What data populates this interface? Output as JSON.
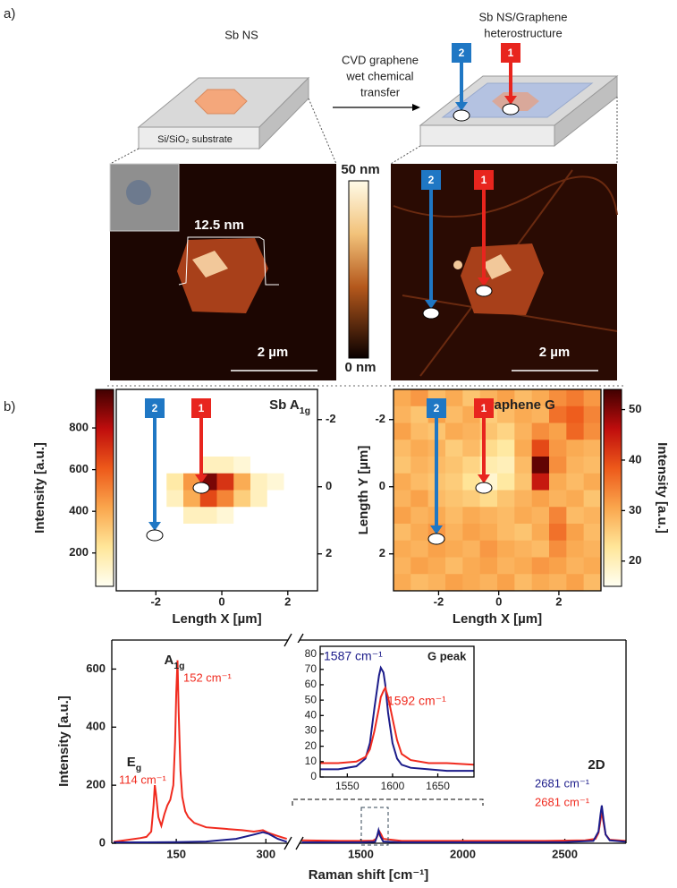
{
  "panel_labels": [
    "a)",
    "b)"
  ],
  "schematic": {
    "left_title": "Sb NS",
    "right_title": [
      "Sb NS/Graphene",
      "heterostructure"
    ],
    "substrate": "Si/SiO₂ substrate",
    "transfer": [
      "CVD graphene",
      "wet chemical",
      "transfer"
    ],
    "marker_1": "1",
    "marker_2": "2"
  },
  "afm": {
    "height": "12.5 nm",
    "scale_bar": "2 µm",
    "cbar_top": "50 nm",
    "cbar_bottom": "0 nm"
  },
  "chart_data": [
    {
      "type": "heatmap",
      "title": "Sb A",
      "title_sub": "1g",
      "xlabel": "Length X [µm]",
      "clabel": "Intensity [a.u.]",
      "xlim": [
        -3.2,
        2.9
      ],
      "xticks": [
        -2,
        0,
        2
      ],
      "ylim": [
        -2.9,
        3.1
      ],
      "yticks": [
        -2,
        0,
        2
      ],
      "yaxis_side": "right",
      "colorbar_side": "left",
      "clim": [
        40,
        985
      ],
      "cticks": [
        200,
        400,
        600,
        800
      ],
      "values": [
        [
          0,
          0,
          0,
          0,
          0,
          0,
          0,
          0,
          0,
          0,
          0,
          0
        ],
        [
          0,
          0,
          0,
          0,
          0,
          0,
          0,
          0,
          0,
          0,
          0,
          0
        ],
        [
          0,
          0,
          0,
          0,
          0,
          0,
          0,
          0,
          0,
          0,
          0,
          0
        ],
        [
          0,
          0,
          0,
          0,
          0,
          0,
          0,
          0,
          0,
          0,
          0,
          0
        ],
        [
          0,
          0,
          0,
          0,
          0,
          150,
          150,
          100,
          0,
          0,
          0,
          0
        ],
        [
          0,
          0,
          0,
          200,
          450,
          900,
          700,
          400,
          150,
          100,
          0,
          0
        ],
        [
          0,
          0,
          0,
          150,
          400,
          650,
          500,
          300,
          150,
          0,
          0,
          0
        ],
        [
          0,
          0,
          0,
          0,
          150,
          150,
          100,
          0,
          0,
          0,
          0,
          0
        ],
        [
          0,
          0,
          0,
          0,
          0,
          0,
          0,
          0,
          0,
          0,
          0,
          0
        ],
        [
          0,
          0,
          0,
          0,
          0,
          0,
          0,
          0,
          0,
          0,
          0,
          0
        ],
        [
          0,
          0,
          0,
          0,
          0,
          0,
          0,
          0,
          0,
          0,
          0,
          0
        ],
        [
          0,
          0,
          0,
          0,
          0,
          0,
          0,
          0,
          0,
          0,
          0,
          0
        ]
      ]
    },
    {
      "type": "heatmap",
      "title": "Graphene G",
      "xlabel": "Length X [µm]",
      "ylabel": "Length Y [µm]",
      "clabel": "Intensity [a.u.]",
      "xlim": [
        -3.5,
        3.4
      ],
      "xticks": [
        -2,
        0,
        2
      ],
      "ylim": [
        -2.9,
        3.1
      ],
      "yticks": [
        -2,
        0,
        2
      ],
      "yaxis_side": "left",
      "colorbar_side": "right",
      "clim": [
        15,
        54
      ],
      "cticks": [
        20,
        30,
        40,
        50
      ],
      "values": [
        [
          30,
          32,
          28,
          30,
          27,
          29,
          31,
          28,
          30,
          33,
          35,
          32
        ],
        [
          29,
          27,
          31,
          28,
          30,
          26,
          28,
          30,
          29,
          36,
          38,
          34
        ],
        [
          31,
          28,
          27,
          30,
          29,
          27,
          25,
          29,
          33,
          31,
          37,
          33
        ],
        [
          28,
          30,
          29,
          26,
          28,
          24,
          22,
          30,
          40,
          32,
          30,
          29
        ],
        [
          27,
          29,
          28,
          27,
          25,
          21,
          20,
          28,
          52,
          33,
          29,
          28
        ],
        [
          30,
          28,
          27,
          26,
          23,
          18,
          22,
          27,
          45,
          30,
          28,
          30
        ],
        [
          29,
          31,
          28,
          27,
          26,
          24,
          27,
          29,
          31,
          29,
          30,
          27
        ],
        [
          31,
          29,
          30,
          28,
          30,
          29,
          28,
          30,
          29,
          34,
          28,
          29
        ],
        [
          28,
          30,
          32,
          29,
          31,
          30,
          28,
          27,
          30,
          36,
          31,
          28
        ],
        [
          30,
          29,
          31,
          30,
          29,
          32,
          30,
          29,
          28,
          33,
          30,
          29
        ],
        [
          29,
          31,
          30,
          28,
          30,
          31,
          29,
          30,
          32,
          31,
          29,
          30
        ],
        [
          30,
          28,
          29,
          31,
          30,
          29,
          31,
          28,
          30,
          29,
          31,
          28
        ]
      ]
    },
    {
      "type": "line",
      "xlabel": "Raman shift [cm⁻¹]",
      "ylabel": "Intensity [a.u.]",
      "ylim": [
        0,
        700
      ],
      "yticks": [
        0,
        200,
        400,
        600
      ],
      "segments": [
        {
          "xlim": [
            42,
            337
          ],
          "xticks": [
            150,
            300
          ],
          "series": [
            {
              "color": "#f02a1e",
              "x": [
                45,
                70,
                90,
                100,
                108,
                112,
                114,
                116,
                120,
                125,
                130,
                135,
                140,
                145,
                148,
                150,
                152,
                154,
                157,
                160,
                165,
                170,
                180,
                200,
                230,
                260,
                280,
                295,
                305,
                320,
                335
              ],
              "values": [
                5,
                12,
                18,
                22,
                40,
                130,
                200,
                170,
                90,
                60,
                100,
                130,
                150,
                200,
                350,
                520,
                630,
                450,
                250,
                160,
                110,
                90,
                70,
                55,
                50,
                45,
                40,
                45,
                35,
                25,
                15
              ]
            },
            {
              "color": "#1c1c8a",
              "x": [
                45,
                100,
                150,
                200,
                250,
                280,
                295,
                305,
                320,
                335
              ],
              "values": [
                3,
                3,
                4,
                6,
                15,
                30,
                38,
                32,
                15,
                5
              ]
            }
          ]
        },
        {
          "xlim": [
            1200,
            2800
          ],
          "xticks": [
            1500,
            2000,
            2500
          ],
          "series": [
            {
              "color": "#f02a1e",
              "x": [
                1210,
                1400,
                1500,
                1560,
                1575,
                1585,
                1592,
                1600,
                1610,
                1700,
                2000,
                2400,
                2600,
                2650,
                2665,
                2675,
                2681,
                2690,
                2700,
                2720,
                2800
              ],
              "values": [
                10,
                8,
                8,
                9,
                15,
                30,
                40,
                30,
                15,
                8,
                8,
                8,
                10,
                15,
                35,
                80,
                110,
                70,
                30,
                12,
                8
              ]
            },
            {
              "color": "#1c1c8a",
              "x": [
                1210,
                1500,
                1570,
                1580,
                1587,
                1595,
                1610,
                1700,
                2000,
                2500,
                2640,
                2665,
                2675,
                2681,
                2690,
                2700,
                2720,
                2800
              ],
              "values": [
                3,
                3,
                5,
                25,
                45,
                25,
                6,
                3,
                3,
                4,
                8,
                40,
                100,
                130,
                80,
                30,
                10,
                5
              ]
            }
          ]
        }
      ],
      "peak_labels": [
        {
          "text": "A",
          "sub": "1g"
        },
        {
          "text": "E",
          "sub": "g"
        },
        {
          "text": "2D"
        }
      ],
      "shift_labels": [
        {
          "text": "152 cm⁻¹",
          "color": "#f02a1e"
        },
        {
          "text": "114 cm⁻¹",
          "color": "#f02a1e"
        },
        {
          "text": "2681 cm⁻¹",
          "color": "#1c1c8a"
        },
        {
          "text": "2681 cm⁻¹",
          "color": "#f02a1e"
        }
      ]
    },
    {
      "type": "line",
      "title": "G peak",
      "xlim": [
        1520,
        1690
      ],
      "xticks": [
        1550,
        1600,
        1650
      ],
      "ylim": [
        0,
        85
      ],
      "yticks": [
        0,
        10,
        20,
        30,
        40,
        50,
        60,
        70,
        80
      ],
      "series": [
        {
          "color": "#1c1c8a",
          "x": [
            1520,
            1540,
            1560,
            1570,
            1575,
            1580,
            1585,
            1587,
            1590,
            1592,
            1595,
            1600,
            1605,
            1610,
            1620,
            1640,
            1660,
            1690
          ],
          "values": [
            5,
            5,
            7,
            12,
            22,
            45,
            66,
            71,
            68,
            60,
            42,
            22,
            12,
            8,
            6,
            5,
            4,
            4
          ]
        },
        {
          "color": "#f02a1e",
          "x": [
            1520,
            1540,
            1560,
            1570,
            1575,
            1580,
            1585,
            1587,
            1590,
            1592,
            1595,
            1600,
            1605,
            1610,
            1620,
            1640,
            1660,
            1690
          ],
          "values": [
            9,
            9,
            10,
            13,
            18,
            30,
            45,
            52,
            56,
            58,
            52,
            38,
            24,
            15,
            11,
            9,
            9,
            8
          ]
        }
      ],
      "shift_labels": [
        {
          "text": "1587 cm⁻¹",
          "color": "#1c1c8a"
        },
        {
          "text": "1592 cm⁻¹",
          "color": "#f02a1e"
        }
      ]
    }
  ]
}
